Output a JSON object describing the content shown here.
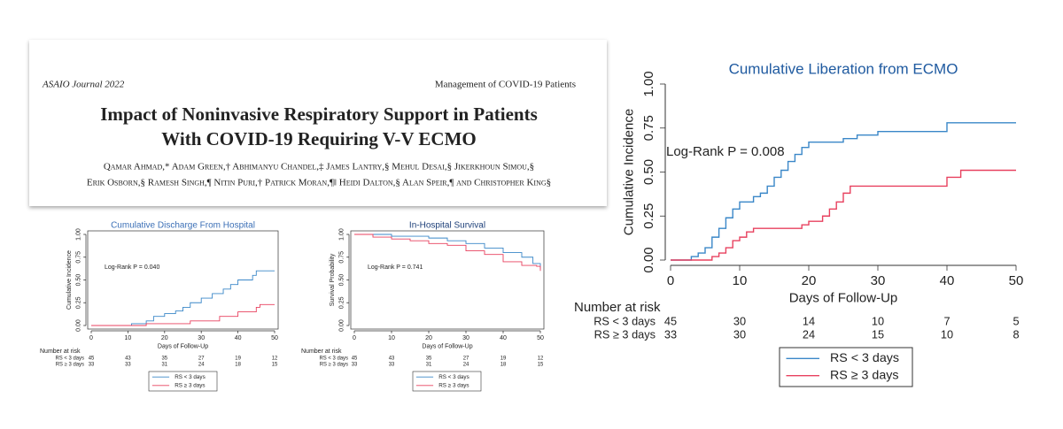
{
  "paper": {
    "journal": "ASAIO Journal 2022",
    "section": "Management of COVID-19 Patients",
    "title_lines": [
      "Impact of Noninvasive Respiratory Support in Patients",
      "With COVID-19 Requiring V-V ECMO"
    ],
    "author_lines": [
      "Qamar Ahmad,* Adam Green,† Abhimanyu Chandel,‡ James Lantry,§ Mehul Desai,§ Jikerkhoun Simou,§",
      "Erik Osborn,§ Ramesh Singh,¶ Nitin Puri,† Patrick Moran,¶‖ Heidi Dalton,§ Alan Speir,¶ and Christopher King§"
    ]
  },
  "chart_data": [
    {
      "type": "line",
      "step": true,
      "title": "Cumulative Discharge From Hospital",
      "title_color": "#3b6fb6",
      "annotation": "Log-Rank P = 0.040",
      "xlabel": "Days of Follow-Up",
      "ylabel": "Cumulative Incidence",
      "xlim": [
        0,
        50
      ],
      "ylim": [
        0,
        1
      ],
      "xticks": [
        0,
        10,
        20,
        30,
        40,
        50
      ],
      "yticks": [
        {
          "value": 0,
          "label": "0.00"
        },
        {
          "value": 0.25,
          "label": "0.25"
        },
        {
          "value": 0.5,
          "label": "0.50"
        },
        {
          "value": 0.75,
          "label": "0.75"
        },
        {
          "value": 1,
          "label": "1.00"
        }
      ],
      "series": [
        {
          "name": "RS < 3 days",
          "color": "#3a87c8",
          "x": [
            0,
            11,
            15,
            17,
            20,
            23,
            25,
            27,
            30,
            33,
            36,
            38,
            40,
            44,
            45,
            50
          ],
          "values": [
            0,
            0.02,
            0.05,
            0.1,
            0.13,
            0.16,
            0.2,
            0.25,
            0.3,
            0.35,
            0.4,
            0.45,
            0.5,
            0.55,
            0.6,
            0.6
          ]
        },
        {
          "name": "RS ≥ 3 days",
          "color": "#e8415f",
          "x": [
            0,
            15,
            27,
            35,
            40,
            45,
            46,
            50
          ],
          "values": [
            0,
            0.02,
            0.05,
            0.1,
            0.15,
            0.2,
            0.23,
            0.23
          ]
        }
      ],
      "risk_table": {
        "title": "Number at risk",
        "rows": [
          {
            "label": "RS < 3 days",
            "counts": [
              45,
              43,
              35,
              27,
              19,
              12
            ]
          },
          {
            "label": "RS ≥ 3 days",
            "counts": [
              33,
              33,
              31,
              24,
              18,
              15
            ]
          }
        ]
      }
    },
    {
      "type": "line",
      "step": true,
      "title": "In-Hospital Survival",
      "title_color": "#1d3f78",
      "annotation": "Log-Rank P = 0.741",
      "xlabel": "Days of Follow-Up",
      "ylabel": "Survival Probability",
      "xlim": [
        0,
        50
      ],
      "ylim": [
        0,
        1
      ],
      "xticks": [
        0,
        10,
        20,
        30,
        40,
        50
      ],
      "yticks": [
        {
          "value": 0,
          "label": "0.00"
        },
        {
          "value": 0.25,
          "label": "0.25"
        },
        {
          "value": 0.5,
          "label": "0.50"
        },
        {
          "value": 0.75,
          "label": "0.75"
        },
        {
          "value": 1,
          "label": "1.00"
        }
      ],
      "series": [
        {
          "name": "RS < 3 days",
          "color": "#3a87c8",
          "x": [
            0,
            5,
            10,
            20,
            25,
            30,
            35,
            40,
            45,
            48,
            50
          ],
          "values": [
            1,
            1,
            0.98,
            0.96,
            0.93,
            0.9,
            0.85,
            0.8,
            0.75,
            0.68,
            0.62
          ]
        },
        {
          "name": "RS ≥ 3 days",
          "color": "#e8415f",
          "x": [
            0,
            5,
            10,
            15,
            20,
            25,
            30,
            35,
            40,
            45,
            49,
            50
          ],
          "values": [
            1,
            0.97,
            0.95,
            0.93,
            0.9,
            0.88,
            0.82,
            0.78,
            0.7,
            0.66,
            0.65,
            0.6
          ]
        }
      ],
      "risk_table": {
        "title": "Number at risk",
        "rows": [
          {
            "label": "RS < 3 days",
            "counts": [
              45,
              43,
              35,
              27,
              19,
              12
            ]
          },
          {
            "label": "RS ≥ 3 days",
            "counts": [
              33,
              33,
              31,
              24,
              18,
              15
            ]
          }
        ]
      }
    },
    {
      "type": "line",
      "step": true,
      "title": "Cumulative Liberation from ECMO",
      "title_color": "#1f5aa0",
      "annotation": "Log-Rank P = 0.008",
      "xlabel": "Days of Follow-Up",
      "ylabel": "Cumulative Incidence",
      "xlim": [
        0,
        50
      ],
      "ylim": [
        0,
        1
      ],
      "xticks": [
        0,
        10,
        20,
        30,
        40,
        50
      ],
      "yticks": [
        {
          "value": 0,
          "label": "0.00"
        },
        {
          "value": 0.25,
          "label": "0.25"
        },
        {
          "value": 0.5,
          "label": "0.50"
        },
        {
          "value": 0.75,
          "label": "0.75"
        },
        {
          "value": 1,
          "label": "1.00"
        }
      ],
      "series": [
        {
          "name": "RS < 3 days",
          "color": "#3a87c8",
          "x": [
            0,
            3,
            4,
            5,
            6,
            7,
            8,
            9,
            10,
            12,
            13,
            14,
            15,
            16,
            17,
            18,
            19,
            20,
            25,
            27,
            30,
            40,
            50
          ],
          "values": [
            0,
            0.02,
            0.04,
            0.07,
            0.13,
            0.18,
            0.24,
            0.29,
            0.33,
            0.36,
            0.38,
            0.42,
            0.47,
            0.51,
            0.56,
            0.6,
            0.64,
            0.67,
            0.69,
            0.71,
            0.73,
            0.78,
            0.78
          ]
        },
        {
          "name": "RS ≥ 3 days",
          "color": "#e8415f",
          "x": [
            0,
            6,
            7,
            8,
            9,
            10,
            11,
            12,
            19,
            20,
            22,
            23,
            24,
            25,
            26,
            40,
            42,
            50
          ],
          "values": [
            0,
            0.02,
            0.04,
            0.07,
            0.11,
            0.13,
            0.16,
            0.18,
            0.2,
            0.22,
            0.25,
            0.29,
            0.33,
            0.38,
            0.42,
            0.47,
            0.51,
            0.51
          ]
        }
      ],
      "risk_table": {
        "title": "Number at risk",
        "rows": [
          {
            "label": "RS < 3 days",
            "counts": [
              45,
              30,
              14,
              10,
              7,
              5
            ]
          },
          {
            "label": "RS ≥ 3 days",
            "counts": [
              33,
              30,
              24,
              15,
              10,
              8
            ]
          }
        ]
      }
    }
  ]
}
